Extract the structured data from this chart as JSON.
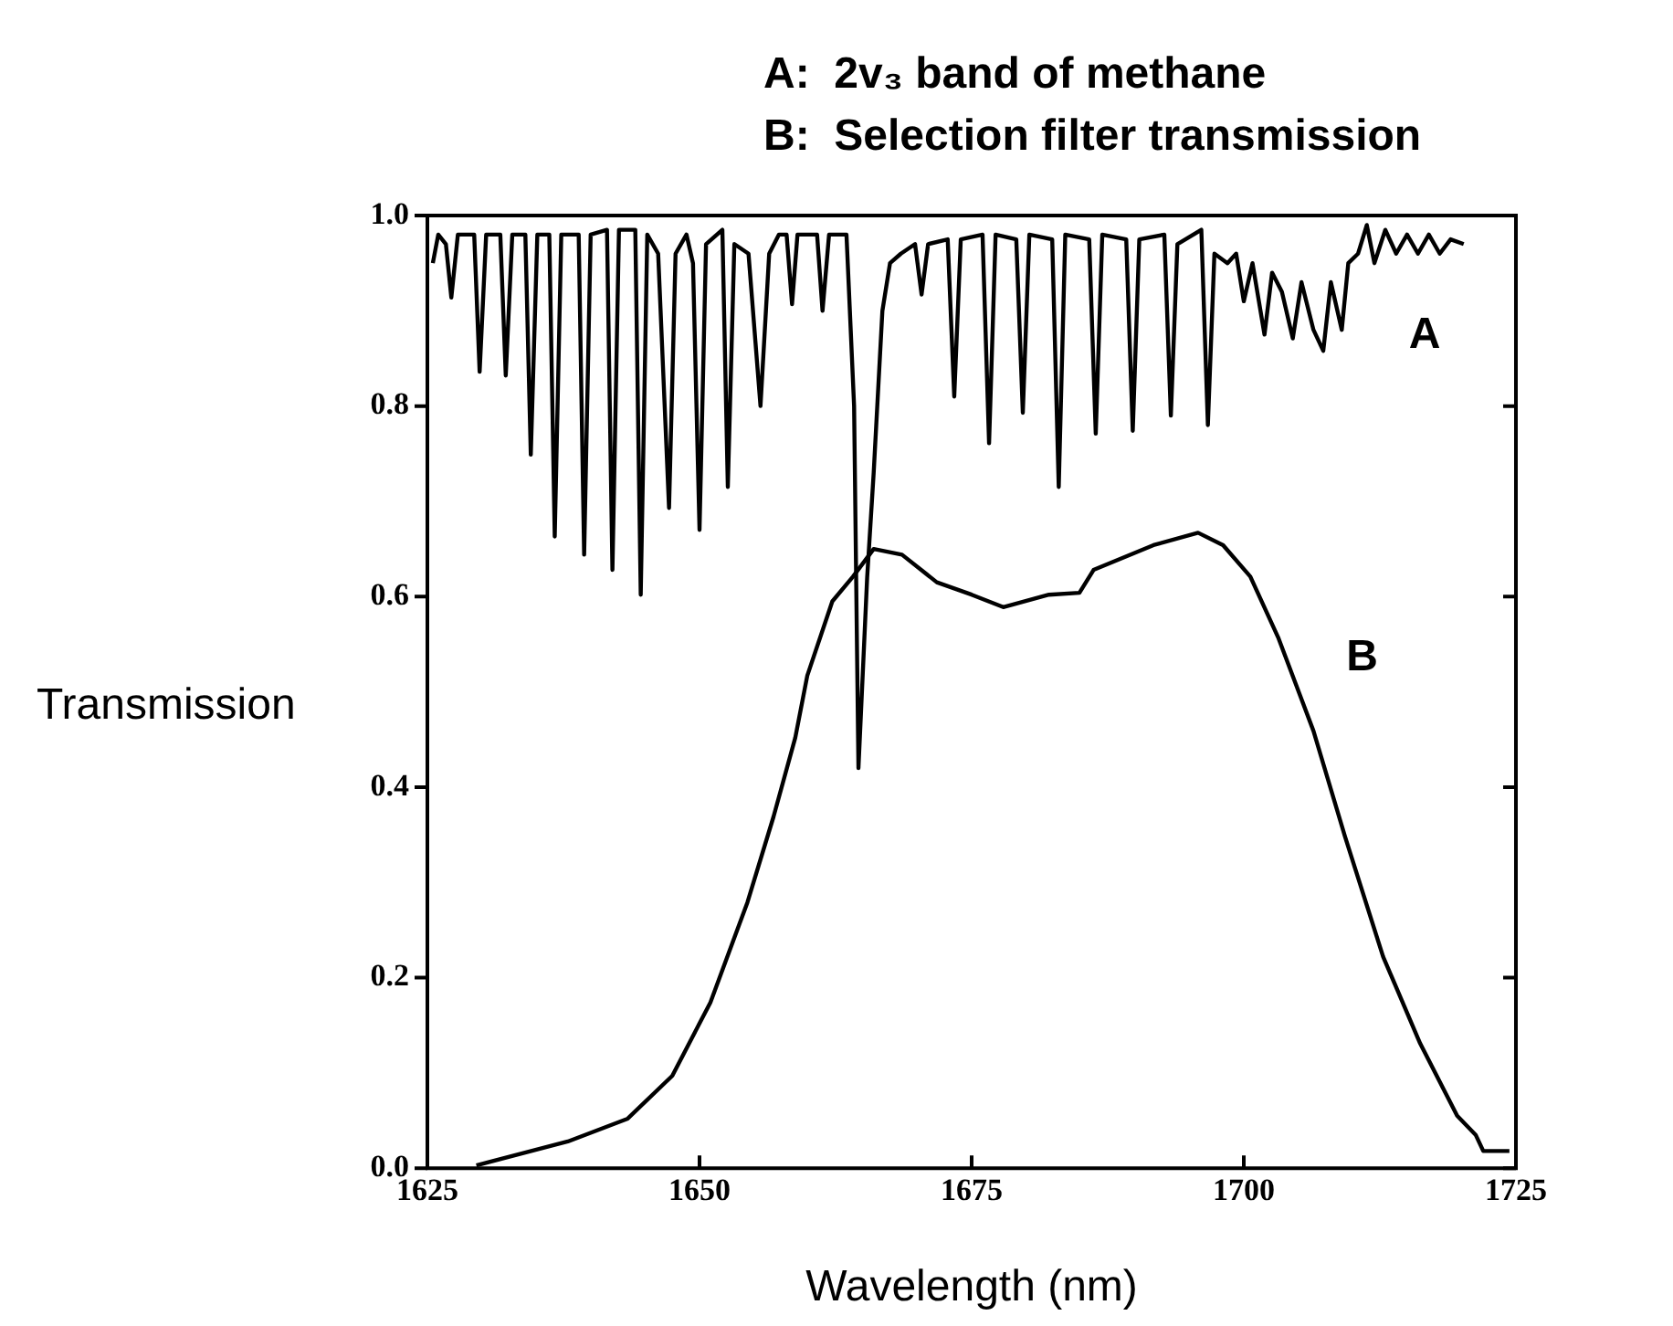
{
  "chart_data": {
    "type": "line",
    "title": "A:  2v₃ band of methane",
    "subtitle": "B:  Selection filter transmission",
    "xlabel": "Wavelength (nm)",
    "ylabel": "Transmission",
    "xlim": [
      1625,
      1725
    ],
    "xticks": [
      1625,
      1650,
      1675,
      1700,
      1725
    ],
    "ylim": [
      0,
      1
    ],
    "yticks": [
      {
        "value": 0,
        "label": "0.0"
      },
      {
        "value": 0.2,
        "label": "0.2"
      },
      {
        "value": 0.4,
        "label": "0.4"
      },
      {
        "value": 0.6,
        "label": "0.6"
      },
      {
        "value": 0.8,
        "label": "0.8"
      },
      {
        "value": 1,
        "label": "1.0"
      }
    ],
    "grid": false,
    "legend": false,
    "marker": "none",
    "line_style": "solid",
    "series": [
      {
        "name": "A",
        "color": "#000000",
        "x": [
          1625.5,
          1626,
          1626.7,
          1627.2,
          1627.8,
          1629.3,
          1629.8,
          1630.4,
          1631.7,
          1632.2,
          1632.8,
          1634,
          1634.5,
          1635.1,
          1636.2,
          1636.7,
          1637.3,
          1638.9,
          1639.4,
          1640,
          1641.5,
          1642.0,
          1642.6,
          1644.1,
          1644.6,
          1645.2,
          1646.2,
          1647.2,
          1647.8,
          1648.8,
          1649.4,
          1650,
          1650.6,
          1652.1,
          1652.6,
          1653.2,
          1654.5,
          1655.6,
          1656.4,
          1657.3,
          1658,
          1658.5,
          1659,
          1660.8,
          1661.3,
          1661.9,
          1663.5,
          1664.2,
          1664.6,
          1665.4,
          1666,
          1666.8,
          1667.5,
          1668.5,
          1669.8,
          1670.4,
          1671,
          1672.8,
          1673.4,
          1674,
          1676,
          1676.6,
          1677.2,
          1679.1,
          1679.7,
          1680.3,
          1682.4,
          1683.0,
          1683.6,
          1685.8,
          1686.4,
          1687,
          1689.2,
          1689.8,
          1690.4,
          1692.7,
          1693.3,
          1693.9,
          1696.1,
          1696.7,
          1697.3,
          1698.5,
          1699.3,
          1700,
          1700.8,
          1701.9,
          1702.6,
          1703.5,
          1704.5,
          1705.3,
          1706.4,
          1707.3,
          1708,
          1709,
          1709.6,
          1710.5,
          1711.3,
          1712,
          1713,
          1714,
          1715,
          1716,
          1717,
          1718,
          1719,
          1720.2
        ],
        "values": [
          0.95,
          0.98,
          0.97,
          0.914,
          0.98,
          0.98,
          0.836,
          0.98,
          0.98,
          0.832,
          0.98,
          0.98,
          0.749,
          0.98,
          0.98,
          0.663,
          0.98,
          0.98,
          0.644,
          0.98,
          0.985,
          0.628,
          0.985,
          0.985,
          0.602,
          0.98,
          0.96,
          0.693,
          0.96,
          0.98,
          0.95,
          0.67,
          0.97,
          0.985,
          0.715,
          0.97,
          0.96,
          0.8,
          0.96,
          0.98,
          0.98,
          0.907,
          0.98,
          0.98,
          0.9,
          0.98,
          0.98,
          0.8,
          0.42,
          0.62,
          0.73,
          0.9,
          0.95,
          0.96,
          0.97,
          0.917,
          0.97,
          0.975,
          0.81,
          0.975,
          0.98,
          0.761,
          0.98,
          0.975,
          0.793,
          0.98,
          0.975,
          0.715,
          0.98,
          0.975,
          0.771,
          0.98,
          0.975,
          0.774,
          0.975,
          0.98,
          0.79,
          0.97,
          0.985,
          0.78,
          0.96,
          0.95,
          0.96,
          0.91,
          0.95,
          0.875,
          0.94,
          0.92,
          0.871,
          0.93,
          0.88,
          0.858,
          0.93,
          0.88,
          0.95,
          0.96,
          0.99,
          0.95,
          0.985,
          0.96,
          0.98,
          0.96,
          0.98,
          0.96,
          0.975,
          0.97
        ]
      },
      {
        "name": "B",
        "color": "#000000",
        "x": [
          1629.5,
          1637.9,
          1643.4,
          1647.5,
          1651,
          1654.4,
          1656.8,
          1658.8,
          1659.9,
          1662.2,
          1664.1,
          1666,
          1668.6,
          1671.8,
          1675,
          1677.9,
          1682.1,
          1684.9,
          1686.2,
          1691.7,
          1695.8,
          1698.1,
          1700.6,
          1703.2,
          1706.4,
          1709.3,
          1712.8,
          1716.2,
          1719.6,
          1721.3,
          1722,
          1724.4
        ],
        "values": [
          0.003,
          0.028,
          0.052,
          0.097,
          0.174,
          0.279,
          0.369,
          0.452,
          0.517,
          0.595,
          0.621,
          0.65,
          0.644,
          0.615,
          0.602,
          0.589,
          0.602,
          0.604,
          0.628,
          0.654,
          0.667,
          0.654,
          0.621,
          0.556,
          0.459,
          0.348,
          0.222,
          0.131,
          0.055,
          0.035,
          0.018,
          0.018
        ]
      }
    ]
  }
}
